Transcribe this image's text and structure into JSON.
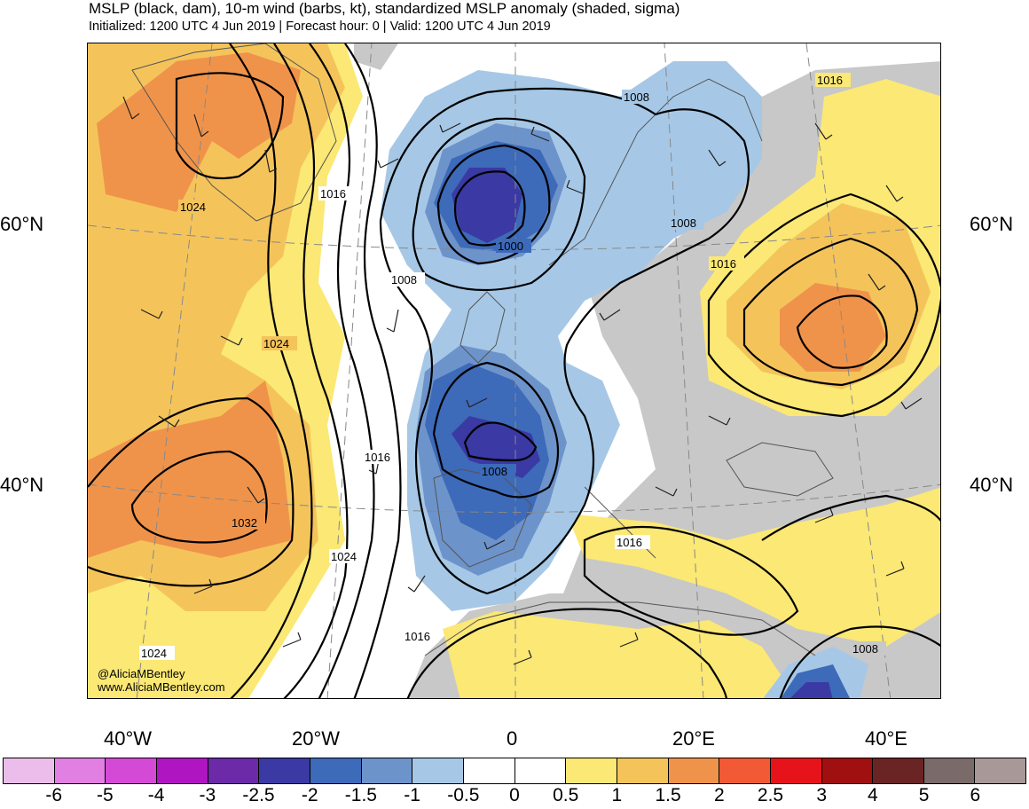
{
  "title": "MSLP (black, dam), 10-m wind (barbs, kt), standardized MSLP anomaly (shaded, sigma)",
  "subtitle": "Initialized: 1200 UTC 4 Jun 2019 | Forecast hour: 0 | Valid: 1200 UTC 4 Jun 2019",
  "lat_labels": {
    "n60_left": "60°N",
    "n60_right": "60°N",
    "n40_left": "40°N",
    "n40_right": "40°N"
  },
  "lon_labels": [
    "40°W",
    "20°W",
    "0",
    "20°E",
    "40°E"
  ],
  "credits": {
    "handle": "@AliciaMBentley",
    "website": "www.AliciaMBentley.com"
  },
  "contour_labels": {
    "c1016_ne": "1016",
    "c1008_scan": "1008",
    "c1016_nw": "1016",
    "c1024_green": "1024",
    "c1000_low": "1000",
    "c1008_baltic": "1008",
    "c1008_west": "1008",
    "c1016_russia": "1016",
    "c1024_mid": "1024",
    "c1016_iberia": "1016",
    "c1008_iberia": "1008",
    "c1032_high": "1032",
    "c1024_south": "1024",
    "c1016_med": "1016",
    "c1016_africa": "1016",
    "c1024_sw": "1024",
    "c1008_se": "1008"
  },
  "colorbar": {
    "labels": [
      "-6",
      "-5",
      "-4",
      "-3",
      "-2.5",
      "-2",
      "-1.5",
      "-1",
      "-0.5",
      "0",
      "0.5",
      "1",
      "1.5",
      "2",
      "2.5",
      "3",
      "4",
      "5",
      "6"
    ],
    "colors": [
      "#ebbdea",
      "#e27fe2",
      "#d44ad6",
      "#b015c2",
      "#6d2aa8",
      "#3b39a3",
      "#3d6ab9",
      "#6d93cb",
      "#a6c8e6",
      "#ffffff",
      "#ffffff",
      "#fbe875",
      "#f4c45b",
      "#f0934a",
      "#f15a35",
      "#e6141a",
      "#a01010",
      "#6b2424",
      "#7a6a6a",
      "#a89898"
    ]
  },
  "shading_colors": {
    "land_gray": "#c8c8c8",
    "anom_neg_05": "#a6c8e6",
    "anom_neg_10": "#6d93cb",
    "anom_neg_15": "#3d6ab9",
    "anom_neg_20": "#3b39a3",
    "anom_pos_05": "#fbe875",
    "anom_pos_10": "#f4c45b",
    "anom_pos_15": "#f0934a"
  }
}
